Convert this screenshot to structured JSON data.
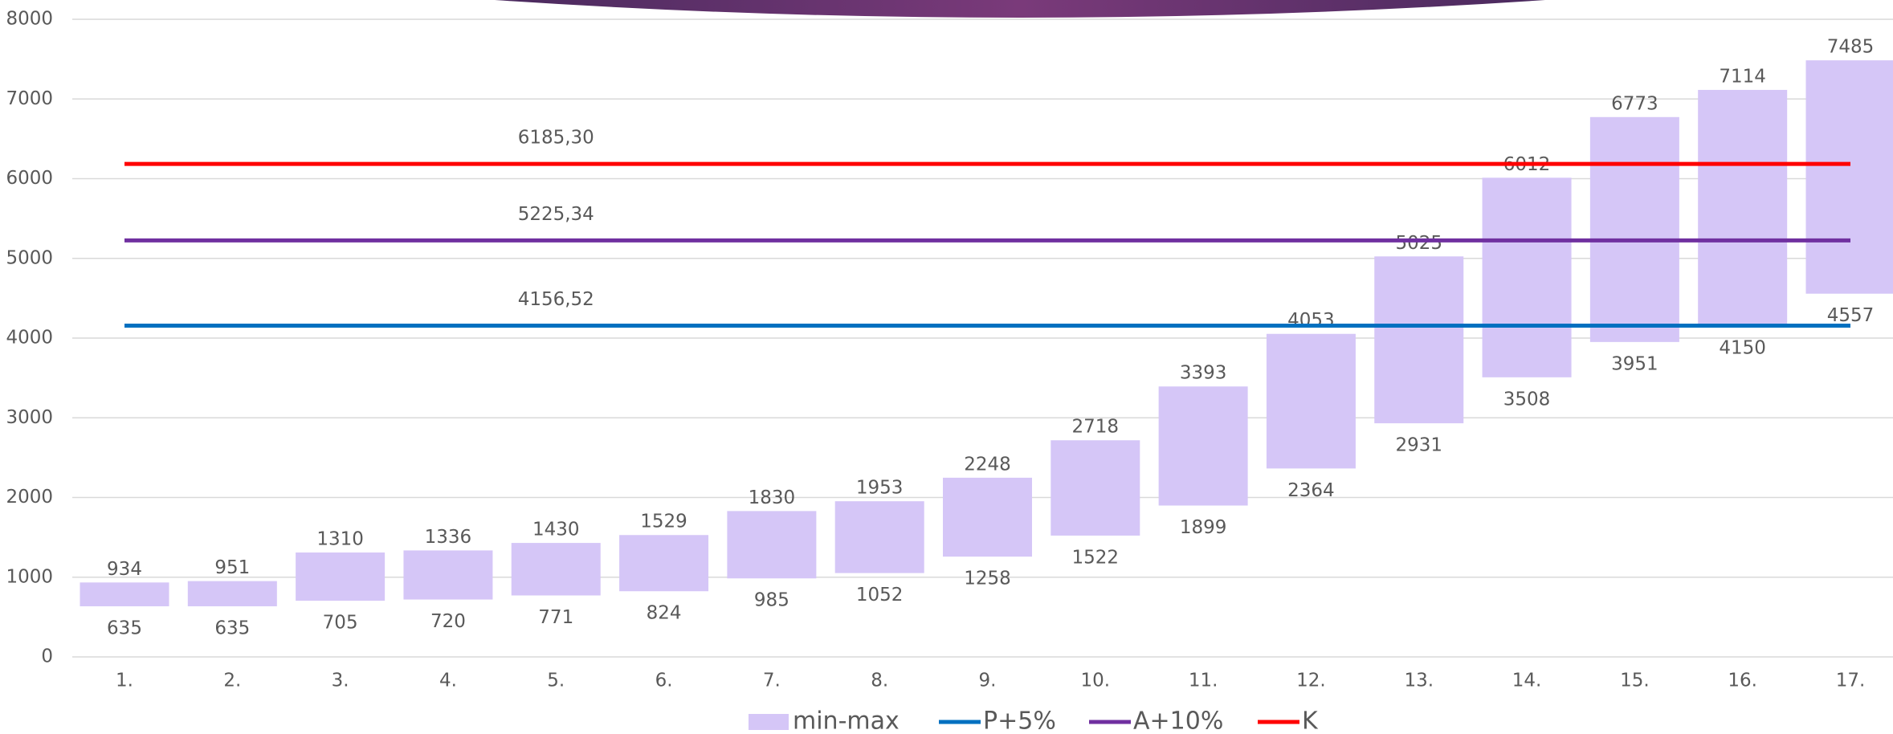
{
  "chart_data": {
    "type": "floating-bar",
    "categories": [
      "1.",
      "2.",
      "3.",
      "4.",
      "5.",
      "6.",
      "7.",
      "8.",
      "9.",
      "10.",
      "11.",
      "12.",
      "13.",
      "14.",
      "15.",
      "16.",
      "17."
    ],
    "series": [
      {
        "name": "min-max",
        "color": "#d5c6f7",
        "low": [
          635,
          635,
          705,
          720,
          771,
          824,
          985,
          1052,
          1258,
          1522,
          1899,
          2364,
          2931,
          3508,
          3951,
          4150,
          4557
        ],
        "high": [
          934,
          951,
          1310,
          1336,
          1430,
          1529,
          1830,
          1953,
          2248,
          2718,
          3393,
          4053,
          5025,
          6012,
          6773,
          7114,
          7485
        ]
      },
      {
        "name": "P+5%",
        "type": "hline",
        "color": "#0070c0",
        "value": 4156.52,
        "value_label": "4156,52"
      },
      {
        "name": "A+10%",
        "type": "hline",
        "color": "#7030a0",
        "value": 5225.34,
        "value_label": "5225,34"
      },
      {
        "name": "K",
        "type": "hline",
        "color": "#ff0000",
        "value": 6185.3,
        "value_label": "6185,30"
      }
    ],
    "ylim": [
      0,
      8000
    ],
    "yticks": [
      0,
      1000,
      2000,
      3000,
      4000,
      5000,
      6000,
      7000,
      8000
    ],
    "grid": true,
    "legend": "bottom"
  }
}
